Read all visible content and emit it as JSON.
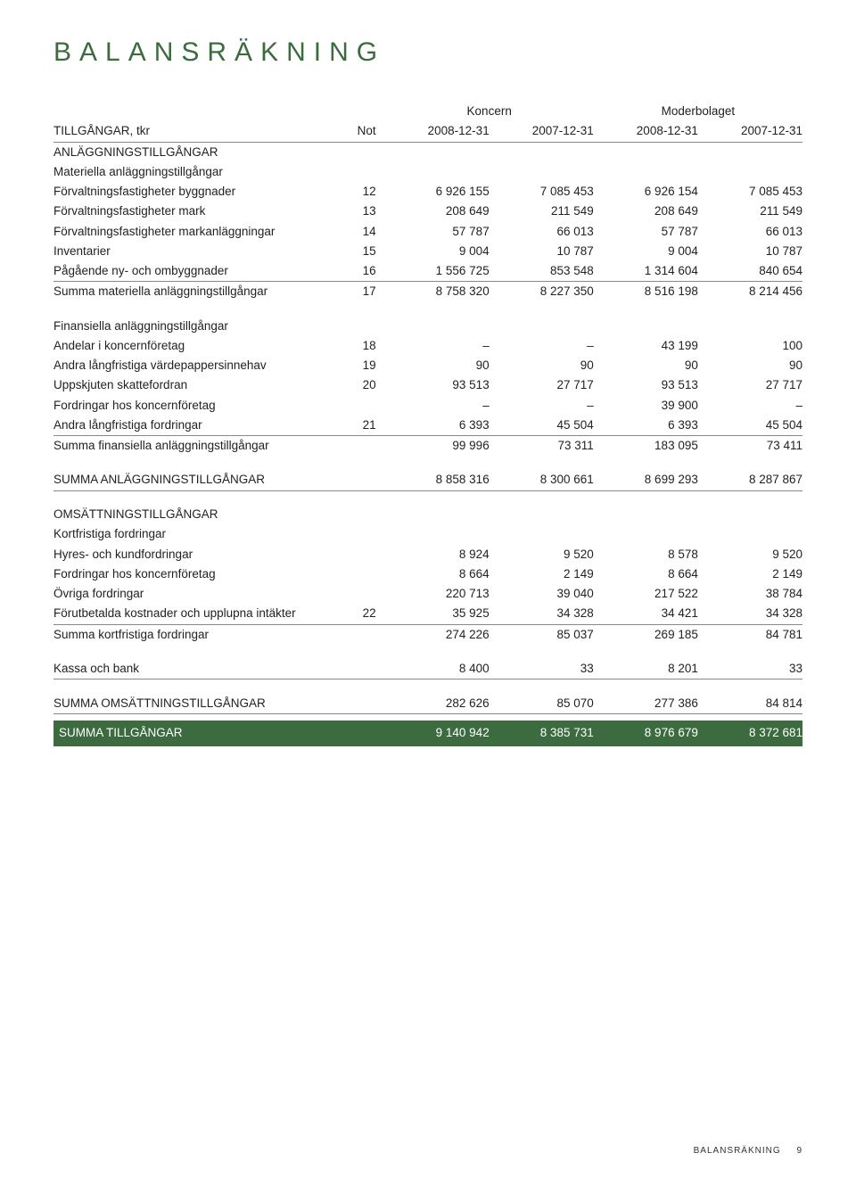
{
  "title": "BALANSRÄKNING",
  "columns": {
    "left_title": "TILLGÅNGAR, tkr",
    "not_label": "Not",
    "group1": "Koncern",
    "group2": "Moderbolaget",
    "g1c1": "2008-12-31",
    "g1c2": "2007-12-31",
    "g2c1": "2008-12-31",
    "g2c2": "2007-12-31"
  },
  "sections": {
    "anl_header": "ANLÄGGNINGSTILLGÅNGAR",
    "mat_header": "Materiella anläggningstillgångar",
    "mat_rows": [
      {
        "label": "Förvaltningsfastigheter byggnader",
        "not": "12",
        "v": [
          "6 926 155",
          "7 085 453",
          "6 926 154",
          "7 085 453"
        ]
      },
      {
        "label": "Förvaltningsfastigheter mark",
        "not": "13",
        "v": [
          "208 649",
          "211 549",
          "208 649",
          "211 549"
        ]
      },
      {
        "label": "Förvaltningsfastigheter markanläggningar",
        "not": "14",
        "v": [
          "57 787",
          "66 013",
          "57 787",
          "66 013"
        ]
      },
      {
        "label": "Inventarier",
        "not": "15",
        "v": [
          "9 004",
          "10 787",
          "9 004",
          "10 787"
        ]
      },
      {
        "label": "Pågående ny- och ombyggnader",
        "not": "16",
        "v": [
          "1 556 725",
          "853 548",
          "1 314 604",
          "840 654"
        ]
      }
    ],
    "mat_sum": {
      "label": "Summa materiella anläggningstillgångar",
      "not": "17",
      "v": [
        "8 758 320",
        "8 227 350",
        "8 516 198",
        "8 214 456"
      ]
    },
    "fin_header": "Finansiella anläggningstillgångar",
    "fin_rows": [
      {
        "label": "Andelar i koncernföretag",
        "not": "18",
        "v": [
          "–",
          "–",
          "43 199",
          "100"
        ]
      },
      {
        "label": "Andra långfristiga värdepappersinnehav",
        "not": "19",
        "v": [
          "90",
          "90",
          "90",
          "90"
        ]
      },
      {
        "label": "Uppskjuten skattefordran",
        "not": "20",
        "v": [
          "93 513",
          "27 717",
          "93 513",
          "27 717"
        ]
      },
      {
        "label": "Fordringar hos koncernföretag",
        "not": "",
        "v": [
          "–",
          "–",
          "39 900",
          "–"
        ]
      },
      {
        "label": "Andra långfristiga fordringar",
        "not": "21",
        "v": [
          "6 393",
          "45 504",
          "6 393",
          "45 504"
        ]
      }
    ],
    "fin_sum": {
      "label": "Summa finansiella anläggningstillgångar",
      "not": "",
      "v": [
        "99 996",
        "73 311",
        "183 095",
        "73 411"
      ]
    },
    "anl_sum": {
      "label": "SUMMA ANLÄGGNINGSTILLGÅNGAR",
      "not": "",
      "v": [
        "8 858 316",
        "8 300 661",
        "8 699 293",
        "8 287 867"
      ]
    },
    "oms_header": "OMSÄTTNINGSTILLGÅNGAR",
    "kf_header": "Kortfristiga fordringar",
    "kf_rows": [
      {
        "label": "Hyres- och kundfordringar",
        "not": "",
        "v": [
          "8 924",
          "9 520",
          "8 578",
          "9 520"
        ]
      },
      {
        "label": "Fordringar hos koncernföretag",
        "not": "",
        "v": [
          "8 664",
          "2 149",
          "8 664",
          "2 149"
        ]
      },
      {
        "label": "Övriga fordringar",
        "not": "",
        "v": [
          "220 713",
          "39 040",
          "217 522",
          "38 784"
        ]
      },
      {
        "label": "Förutbetalda kostnader och upplupna intäkter",
        "not": "22",
        "v": [
          "35 925",
          "34 328",
          "34 421",
          "34 328"
        ]
      }
    ],
    "kf_sum": {
      "label": "Summa kortfristiga fordringar",
      "not": "",
      "v": [
        "274 226",
        "85 037",
        "269 185",
        "84 781"
      ]
    },
    "kassa": {
      "label": "Kassa och bank",
      "not": "",
      "v": [
        "8 400",
        "33",
        "8 201",
        "33"
      ]
    },
    "oms_sum": {
      "label": "SUMMA OMSÄTTNINGSTILLGÅNGAR",
      "not": "",
      "v": [
        "282 626",
        "85 070",
        "277 386",
        "84 814"
      ]
    },
    "total": {
      "label": "SUMMA TILLGÅNGAR",
      "not": "",
      "v": [
        "9 140 942",
        "8 385 731",
        "8 976 679",
        "8 372 681"
      ]
    }
  },
  "footer": {
    "label": "BALANSRÄKNING",
    "page": "9"
  },
  "style": {
    "title_color": "#3c6b3f",
    "band_bg": "#3c6b3f",
    "band_fg": "#ffffff",
    "rule_color": "#888888",
    "body_font_size": 13.5,
    "title_font_size": 30
  }
}
